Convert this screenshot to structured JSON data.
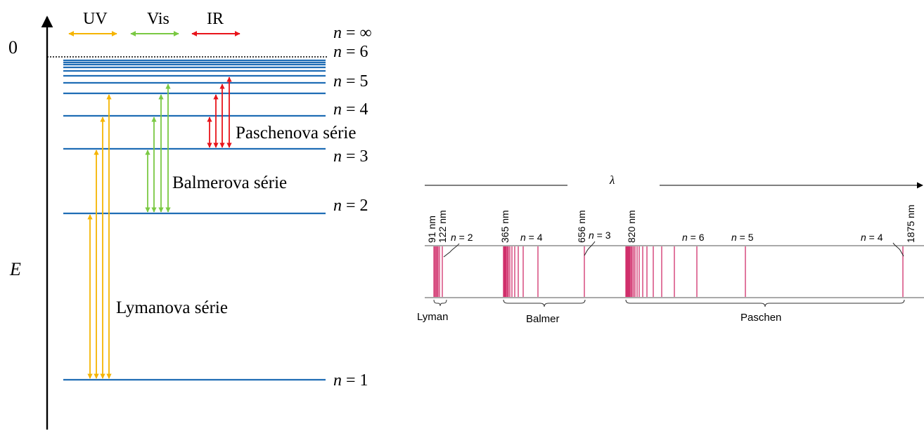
{
  "energy_diagram": {
    "axis": {
      "energy_label": "E",
      "zero_label": "0"
    },
    "bands": {
      "uv": "UV",
      "vis": "Vis",
      "ir": "IR"
    },
    "band_colors": {
      "uv": "#f5b400",
      "vis": "#7ac943",
      "ir": "#e8141b"
    },
    "level_color": "#1f6db5",
    "levels": [
      {
        "n": 1,
        "label_n": "n",
        "label_eq": " = ",
        "label_value": "1"
      },
      {
        "n": 2,
        "label_n": "n",
        "label_eq": " = ",
        "label_value": "2"
      },
      {
        "n": 3,
        "label_n": "n",
        "label_eq": " = ",
        "label_value": "3"
      },
      {
        "n": 4,
        "label_n": "n",
        "label_eq": " = ",
        "label_value": "4"
      },
      {
        "n": 5,
        "label_n": "n",
        "label_eq": " = ",
        "label_value": "5"
      },
      {
        "n": 6,
        "label_n": "n",
        "label_eq": " = ",
        "label_value": "6"
      },
      {
        "n": "inf",
        "label_n": "n",
        "label_eq": " = ",
        "label_value": "∞"
      }
    ],
    "series": [
      {
        "name": "Lymanova série",
        "band": "uv",
        "lower": 1,
        "uppers": [
          2,
          3,
          4,
          5
        ]
      },
      {
        "name": "Balmerova série",
        "band": "vis",
        "lower": 2,
        "uppers": [
          3,
          4,
          5,
          6
        ]
      },
      {
        "name": "Paschenova série",
        "band": "ir",
        "lower": 3,
        "uppers": [
          4,
          5,
          6,
          7
        ]
      }
    ]
  },
  "spectrum": {
    "axis_label": "λ",
    "line_color": "#d12f6b",
    "wavelength_labels": [
      "91 nm",
      "122 nm",
      "365 nm",
      "656 nm",
      "820 nm",
      "1875 nm"
    ],
    "transition_labels": [
      {
        "n": "n",
        "eq": " = ",
        "value": "2"
      },
      {
        "n": "n",
        "eq": " = ",
        "value": "4"
      },
      {
        "n": "n",
        "eq": " = ",
        "value": "3"
      },
      {
        "n": "n",
        "eq": " = ",
        "value": "6"
      },
      {
        "n": "n",
        "eq": " = ",
        "value": "5"
      },
      {
        "n": "n",
        "eq": " = ",
        "value": "4"
      }
    ],
    "groups": [
      "Lyman",
      "Balmer",
      "Paschen"
    ]
  }
}
